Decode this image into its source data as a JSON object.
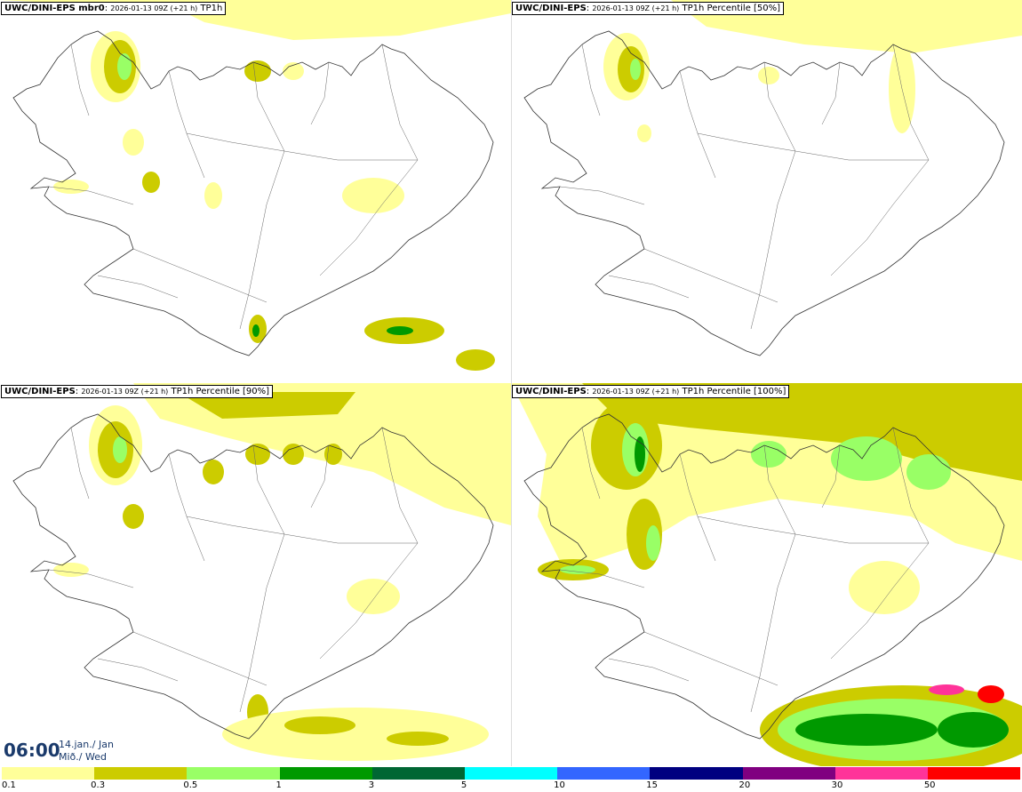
{
  "panels": [
    {
      "model": "UWC/DINI-EPS mbr0",
      "run": "2026-01-13 09Z (+21 h)",
      "field": "TP1h"
    },
    {
      "model": "UWC/DINI-EPS",
      "run": "2026-01-13 09Z (+21 h)",
      "field": "TP1h Percentile [50%]"
    },
    {
      "model": "UWC/DINI-EPS",
      "run": "2026-01-13 09Z (+21 h)",
      "field": "TP1h Percentile [90%]"
    },
    {
      "model": "UWC/DINI-EPS",
      "run": "2026-01-13 09Z (+21 h)",
      "field": "TP1h Percentile [100%]"
    }
  ],
  "time": {
    "main": "06:00",
    "date": "14.jan./ Jan",
    "day": "Mið./ Wed"
  },
  "legend": {
    "colors": [
      "#ffff99",
      "#cccc00",
      "#99ff66",
      "#009900",
      "#006633",
      "#00ffff",
      "#3366ff",
      "#000080",
      "#800080",
      "#ff3399",
      "#ff0000"
    ],
    "labels": [
      "0.1",
      "0.3",
      "0.5",
      "1",
      "3",
      "5",
      "10",
      "15",
      "20",
      "30",
      "50"
    ]
  },
  "palette": {
    "light": "#ffff99",
    "olive": "#cccc00",
    "lightgreen": "#99ff66",
    "green": "#009900",
    "darkgreen": "#006633"
  }
}
